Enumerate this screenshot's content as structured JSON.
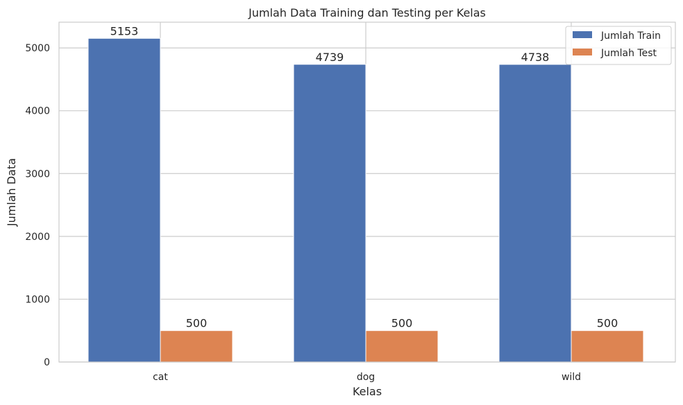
{
  "chart_data": {
    "type": "bar",
    "title": "Jumlah Data Training dan Testing per Kelas",
    "xlabel": "Kelas",
    "ylabel": "Jumlah Data",
    "categories": [
      "cat",
      "dog",
      "wild"
    ],
    "series": [
      {
        "name": "Jumlah Train",
        "values": [
          5153,
          4739,
          4738
        ],
        "color": "#4c72b0"
      },
      {
        "name": "Jumlah Test",
        "values": [
          500,
          500,
          500
        ],
        "color": "#dd8452"
      }
    ],
    "ylim": [
      0,
      5410
    ],
    "yticks": [
      0,
      1000,
      2000,
      3000,
      4000,
      5000
    ],
    "grid": true,
    "legend_position": "top-right"
  }
}
